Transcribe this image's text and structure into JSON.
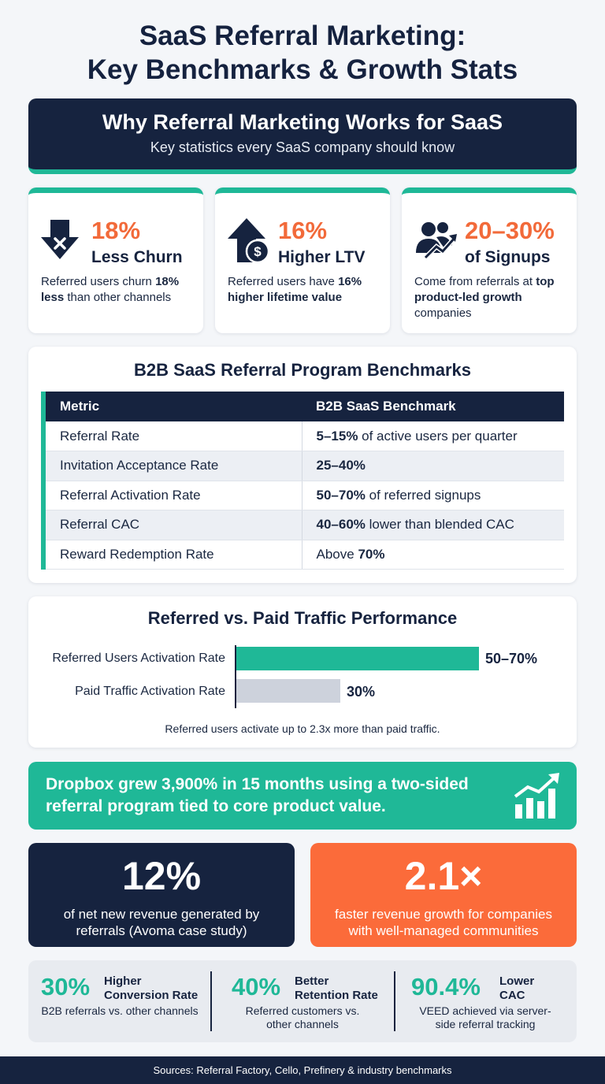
{
  "title": {
    "line1": "SaaS Referral Marketing:",
    "line2": "Key Benchmarks & Growth Stats"
  },
  "hero": {
    "heading": "Why Referral Marketing Works for SaaS",
    "subheading": "Key statistics every SaaS company should know"
  },
  "stats": [
    {
      "icon": "down-arrow-x-icon",
      "value": "18%",
      "label": "Less Churn",
      "desc_pre": "Referred users churn ",
      "desc_bold": "18% less",
      "desc_post": " than other channels"
    },
    {
      "icon": "up-arrow-dollar-icon",
      "value": "16%",
      "label": "Higher LTV",
      "desc_pre": "Referred users have ",
      "desc_bold": "16% higher lifetime value",
      "desc_post": ""
    },
    {
      "icon": "users-growth-icon",
      "value": "20–30%",
      "label": "of Signups",
      "desc_pre": "Come from referrals at ",
      "desc_bold": "top product-led growth",
      "desc_post": " companies"
    }
  ],
  "benchmarks": {
    "title": "B2B SaaS Referral Program Benchmarks",
    "headers": [
      "Metric",
      "B2B SaaS Benchmark"
    ],
    "rows": [
      {
        "metric": "Referral Rate",
        "bold": "5–15%",
        "rest": " of active users per quarter"
      },
      {
        "metric": "Invitation Acceptance Rate",
        "bold": "25–40%",
        "rest": ""
      },
      {
        "metric": "Referral Activation Rate",
        "bold": "50–70%",
        "rest": " of referred signups"
      },
      {
        "metric": "Referral CAC",
        "bold": "40–60%",
        "rest": " lower than blended CAC"
      },
      {
        "metric": "Reward Redemption Rate",
        "pre": "Above ",
        "bold": "70%",
        "rest": ""
      }
    ]
  },
  "performance": {
    "title": "Referred vs. Paid Traffic Performance",
    "bars": [
      {
        "label": "Referred Users Activation Rate",
        "value_label": "50–70%",
        "value": 70,
        "color": "#1fb897"
      },
      {
        "label": "Paid Traffic Activation Rate",
        "value_label": "30%",
        "value": 30,
        "color": "#cdd2dc"
      }
    ],
    "footnote": "Referred users activate up to 2.3x more than paid traffic."
  },
  "dropbox": {
    "text": "Dropbox grew 3,900% in 15 months using a two-sided referral program tied to core product value.",
    "icon": "growth-chart-icon"
  },
  "duo": [
    {
      "value": "12%",
      "text": "of net new revenue generated by referrals (Avoma case study)",
      "bg": "#16233f"
    },
    {
      "value": "2.1×",
      "text": "faster revenue growth for companies with well-managed communities",
      "bg": "#fb6b3a"
    }
  ],
  "trio": [
    {
      "value": "30%",
      "label1": "Higher",
      "label2": "Conversion Rate",
      "desc": "B2B referrals vs. other channels"
    },
    {
      "value": "40%",
      "label1": "Better",
      "label2": "Retention Rate",
      "desc": "Referred customers vs. other channels"
    },
    {
      "value": "90.4%",
      "label1": "Lower",
      "label2": "CAC",
      "desc": "VEED achieved via server-side referral tracking"
    }
  ],
  "sources": "Sources: Referral Factory, Cello, Prefinery & industry benchmarks"
}
